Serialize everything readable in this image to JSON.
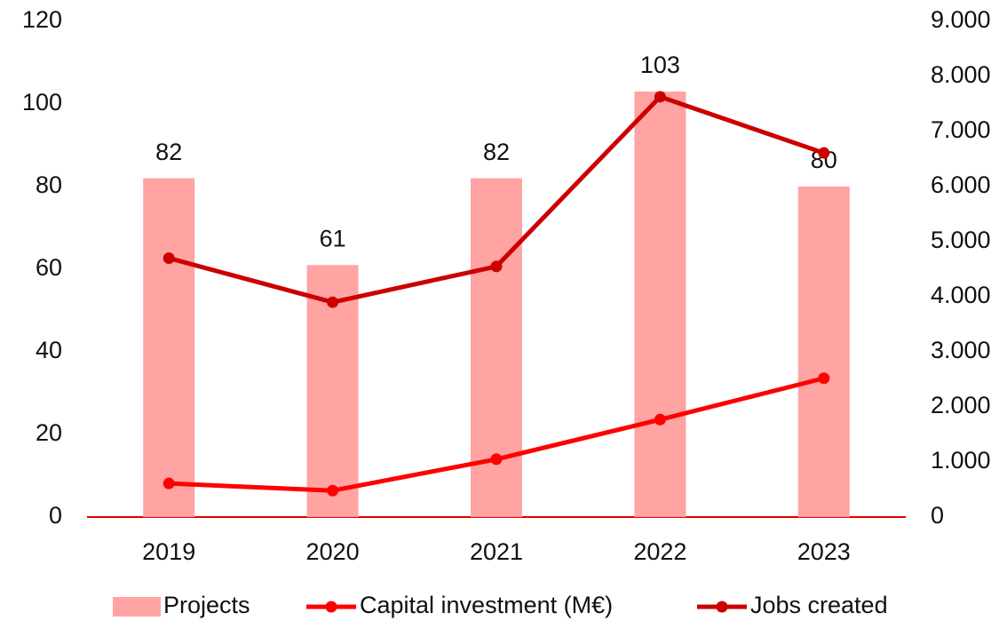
{
  "chart_data": {
    "type": "bar",
    "categories": [
      "2019",
      "2020",
      "2021",
      "2022",
      "2023"
    ],
    "series": [
      {
        "name": "Projects",
        "type": "bar",
        "color": "#ffa3a3",
        "values": [
          82,
          61,
          82,
          103,
          80
        ]
      },
      {
        "name": "Capital investment (M€)",
        "type": "line",
        "axis": "y2",
        "color": "#ff0000",
        "values": [
          610,
          480,
          1050,
          1770,
          2520
        ]
      },
      {
        "name": "Jobs created",
        "type": "line",
        "axis": "y2",
        "color": "#cc0000",
        "values": [
          4700,
          3900,
          4550,
          7630,
          6610
        ]
      }
    ],
    "ylim": [
      0,
      120
    ],
    "yticks": [
      0,
      20,
      40,
      60,
      80,
      100,
      120
    ],
    "y2lim": [
      0,
      9000
    ],
    "y2ticks": [
      0,
      {
        "value": 1000,
        "label": "1.000"
      },
      {
        "value": 2000,
        "label": "2.000"
      },
      {
        "value": 3000,
        "label": "3.000"
      },
      {
        "value": 4000,
        "label": "4.000"
      },
      {
        "value": 5000,
        "label": "5.000"
      },
      {
        "value": 6000,
        "label": "6.000"
      },
      {
        "value": 7000,
        "label": "7.000"
      },
      {
        "value": 8000,
        "label": "8.000"
      },
      {
        "value": 9000,
        "label": "9.000"
      }
    ],
    "grid": false,
    "legend": "bottom"
  }
}
